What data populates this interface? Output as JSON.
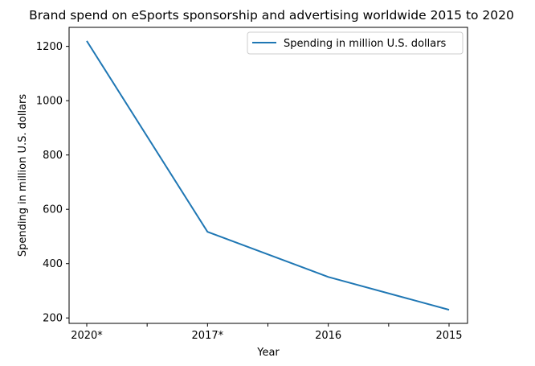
{
  "chart_data": {
    "type": "line",
    "title": "Brand spend on eSports sponsorship and advertising worldwide 2015 to 2020",
    "xlabel": "Year",
    "ylabel": "Spending in million U.S. dollars",
    "categories": [
      "2020*",
      "2017*",
      "2016",
      "2015"
    ],
    "series": [
      {
        "name": "Spending in million U.S. dollars",
        "values": [
          1220,
          517,
          351,
          230
        ],
        "color": "#1f77b4"
      }
    ],
    "ylim": [
      180,
      1270
    ],
    "yticks": [
      200,
      400,
      600,
      800,
      1000,
      1200
    ],
    "grid": false,
    "legend": "top-right"
  }
}
